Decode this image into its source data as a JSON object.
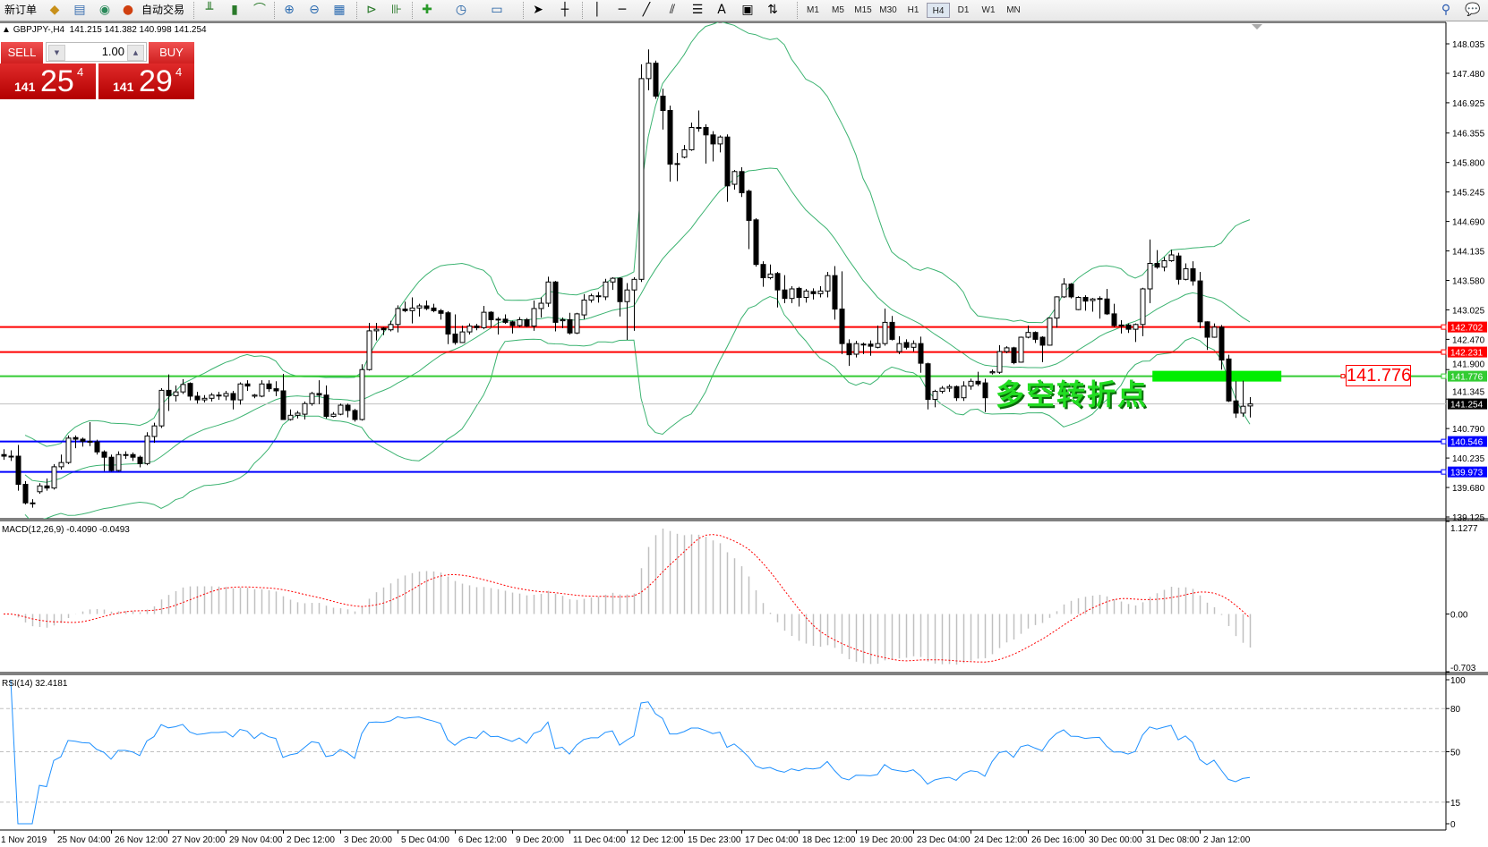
{
  "toolbar": {
    "new_order": "新订单",
    "auto_trading": "自动交易",
    "timeframes": [
      "M1",
      "M5",
      "M15",
      "M30",
      "H1",
      "H4",
      "D1",
      "W1",
      "MN"
    ],
    "active_timeframe": "H4"
  },
  "chart_header": {
    "symbol_line": "GBPJPY-,H4  141.215 141.382 140.998 141.254"
  },
  "trade_panel": {
    "sell_label": "SELL",
    "buy_label": "BUY",
    "lot": "1.00",
    "bid": {
      "small": "141",
      "big": "25",
      "sup": "4"
    },
    "ask": {
      "small": "141",
      "big": "29",
      "sup": "4"
    }
  },
  "annotation": {
    "text": "多空转折点",
    "price_label": "141.776",
    "color": "#22dd22"
  },
  "chart_data": {
    "type": "candlestick",
    "symbol": "GBPJPY-",
    "timeframe": "H4",
    "ohlc": [
      [
        140.3,
        140.4,
        140.2,
        140.27
      ],
      [
        140.27,
        140.38,
        140.18,
        140.27
      ],
      [
        140.27,
        140.48,
        139.62,
        139.74
      ],
      [
        139.74,
        139.8,
        139.36,
        139.39
      ],
      [
        139.39,
        139.46,
        139.3,
        139.39
      ],
      [
        139.6,
        139.76,
        139.56,
        139.71
      ],
      [
        139.71,
        139.85,
        139.62,
        139.67
      ],
      [
        139.67,
        140.12,
        139.64,
        140.07
      ],
      [
        140.07,
        140.3,
        140.02,
        140.15
      ],
      [
        140.15,
        140.66,
        140.12,
        140.61
      ],
      [
        140.62,
        140.66,
        140.42,
        140.59
      ],
      [
        140.59,
        140.62,
        140.45,
        140.55
      ],
      [
        140.55,
        140.91,
        140.46,
        140.54
      ],
      [
        140.54,
        140.58,
        140.3,
        140.35
      ],
      [
        140.35,
        140.38,
        139.99,
        140.25
      ],
      [
        140.25,
        140.3,
        139.98,
        140.0
      ],
      [
        140.0,
        140.36,
        139.98,
        140.3
      ],
      [
        140.3,
        140.36,
        140.22,
        140.3
      ],
      [
        140.3,
        140.34,
        140.18,
        140.25
      ],
      [
        140.25,
        140.28,
        140.06,
        140.13
      ],
      [
        140.13,
        140.72,
        140.1,
        140.65
      ],
      [
        140.64,
        140.9,
        140.52,
        140.84
      ],
      [
        140.84,
        141.55,
        140.8,
        141.51
      ],
      [
        141.51,
        141.81,
        141.12,
        141.41
      ],
      [
        141.41,
        141.6,
        141.3,
        141.48
      ],
      [
        141.48,
        141.72,
        141.44,
        141.62
      ],
      [
        141.64,
        141.66,
        141.32,
        141.4
      ],
      [
        141.4,
        141.48,
        141.26,
        141.33
      ],
      [
        141.33,
        141.42,
        141.28,
        141.36
      ],
      [
        141.36,
        141.46,
        141.3,
        141.42
      ],
      [
        141.42,
        141.48,
        141.33,
        141.42
      ],
      [
        141.4,
        141.5,
        141.32,
        141.45
      ],
      [
        141.45,
        141.5,
        141.15,
        141.33
      ],
      [
        141.33,
        141.66,
        141.24,
        141.63
      ],
      [
        141.63,
        141.7,
        141.5,
        141.59
      ],
      [
        141.4,
        141.44,
        141.36,
        141.42
      ],
      [
        141.4,
        141.7,
        141.38,
        141.63
      ],
      [
        141.63,
        141.7,
        141.48,
        141.54
      ],
      [
        141.54,
        141.68,
        141.4,
        141.5
      ],
      [
        141.5,
        141.82,
        140.96,
        140.96
      ],
      [
        140.96,
        141.15,
        140.94,
        141.04
      ],
      [
        141.04,
        141.12,
        140.98,
        141.08
      ],
      [
        141.06,
        141.3,
        140.96,
        141.26
      ],
      [
        141.26,
        141.48,
        141.22,
        141.45
      ],
      [
        141.45,
        141.7,
        141.25,
        141.42
      ],
      [
        141.42,
        141.6,
        140.98,
        141.02
      ],
      [
        141.02,
        141.1,
        141.0,
        141.06
      ],
      [
        141.06,
        141.26,
        141.04,
        141.23
      ],
      [
        141.23,
        141.26,
        141.0,
        141.13
      ],
      [
        141.13,
        141.16,
        140.92,
        140.96
      ],
      [
        140.96,
        142.0,
        140.94,
        141.9
      ],
      [
        141.9,
        142.78,
        141.88,
        142.63
      ],
      [
        142.63,
        142.78,
        142.45,
        142.66
      ],
      [
        142.68,
        142.7,
        142.55,
        142.65
      ],
      [
        142.65,
        142.82,
        142.62,
        142.75
      ],
      [
        142.75,
        143.11,
        142.6,
        143.05
      ],
      [
        143.04,
        143.18,
        142.98,
        143.01
      ],
      [
        143.01,
        143.26,
        142.77,
        143.06
      ],
      [
        143.06,
        143.14,
        142.9,
        143.1
      ],
      [
        143.1,
        143.2,
        143.02,
        143.05
      ],
      [
        143.06,
        143.14,
        142.98,
        143.01
      ],
      [
        143.01,
        143.04,
        142.84,
        142.96
      ],
      [
        142.97,
        143.0,
        142.38,
        142.57
      ],
      [
        142.57,
        142.94,
        142.37,
        142.41
      ],
      [
        142.41,
        142.73,
        142.4,
        142.61
      ],
      [
        142.61,
        142.77,
        142.56,
        142.72
      ],
      [
        142.72,
        142.76,
        142.64,
        142.69
      ],
      [
        142.69,
        143.1,
        142.66,
        142.98
      ],
      [
        142.98,
        143.0,
        142.7,
        142.84
      ],
      [
        142.85,
        142.89,
        142.56,
        142.85
      ],
      [
        142.85,
        142.94,
        142.76,
        142.79
      ],
      [
        142.8,
        142.82,
        142.58,
        142.73
      ],
      [
        142.73,
        142.89,
        142.7,
        142.84
      ],
      [
        142.84,
        142.87,
        142.7,
        142.72
      ],
      [
        142.72,
        143.2,
        142.63,
        143.05
      ],
      [
        143.05,
        143.26,
        142.88,
        143.15
      ],
      [
        143.15,
        143.65,
        143.08,
        143.55
      ],
      [
        143.55,
        143.57,
        142.62,
        142.79
      ],
      [
        142.82,
        142.88,
        142.68,
        142.84
      ],
      [
        142.84,
        142.97,
        142.56,
        142.59
      ],
      [
        142.59,
        142.97,
        142.57,
        142.95
      ],
      [
        142.93,
        143.32,
        142.85,
        143.21
      ],
      [
        143.21,
        143.33,
        143.16,
        143.29
      ],
      [
        143.29,
        143.36,
        143.16,
        143.29
      ],
      [
        143.27,
        143.61,
        143.21,
        143.55
      ],
      [
        143.55,
        143.64,
        143.4,
        143.62
      ],
      [
        143.62,
        143.64,
        142.9,
        143.18
      ],
      [
        143.18,
        143.53,
        142.46,
        143.4
      ],
      [
        143.4,
        143.64,
        142.63,
        143.6
      ],
      [
        143.6,
        147.65,
        143.55,
        147.38
      ],
      [
        147.38,
        147.93,
        147.16,
        147.67
      ],
      [
        147.67,
        147.72,
        147.0,
        147.05
      ],
      [
        147.05,
        147.19,
        146.42,
        146.78
      ],
      [
        146.78,
        146.87,
        145.44,
        145.77
      ],
      [
        145.78,
        145.98,
        145.45,
        145.78
      ],
      [
        145.9,
        146.13,
        145.88,
        146.04
      ],
      [
        146.04,
        146.55,
        146.02,
        146.46
      ],
      [
        146.46,
        146.78,
        146.38,
        146.46
      ],
      [
        146.46,
        146.52,
        145.78,
        146.32
      ],
      [
        146.32,
        146.39,
        145.82,
        146.15
      ],
      [
        146.15,
        146.31,
        145.99,
        146.28
      ],
      [
        146.28,
        146.33,
        145.06,
        145.36
      ],
      [
        145.39,
        145.66,
        145.29,
        145.63
      ],
      [
        145.63,
        145.71,
        145.15,
        145.23
      ],
      [
        145.26,
        145.29,
        144.17,
        144.71
      ],
      [
        144.72,
        144.75,
        143.84,
        143.88
      ],
      [
        143.88,
        143.94,
        143.46,
        143.63
      ],
      [
        143.63,
        143.88,
        143.6,
        143.7
      ],
      [
        143.71,
        143.74,
        143.07,
        143.4
      ],
      [
        143.4,
        143.68,
        143.15,
        143.24
      ],
      [
        143.24,
        143.47,
        143.15,
        143.42
      ],
      [
        143.43,
        143.46,
        143.09,
        143.26
      ],
      [
        143.26,
        143.42,
        143.16,
        143.38
      ],
      [
        143.37,
        143.43,
        143.22,
        143.33
      ],
      [
        143.33,
        143.47,
        143.26,
        143.38
      ],
      [
        143.38,
        143.74,
        143.26,
        143.67
      ],
      [
        143.67,
        143.85,
        142.84,
        143.04
      ],
      [
        143.04,
        143.75,
        142.19,
        142.39
      ],
      [
        142.39,
        142.47,
        141.97,
        142.18
      ],
      [
        142.19,
        142.44,
        142.13,
        142.39
      ],
      [
        142.38,
        142.41,
        142.19,
        142.38
      ],
      [
        142.38,
        142.45,
        142.16,
        142.34
      ],
      [
        142.32,
        142.73,
        142.3,
        142.39
      ],
      [
        142.39,
        143.05,
        142.35,
        142.79
      ],
      [
        142.79,
        142.91,
        142.45,
        142.47
      ],
      [
        142.24,
        142.53,
        142.19,
        142.39
      ],
      [
        142.41,
        142.47,
        142.28,
        142.32
      ],
      [
        142.32,
        142.45,
        142.24,
        142.39
      ],
      [
        142.39,
        142.52,
        141.84,
        142.02
      ],
      [
        142.01,
        142.03,
        141.15,
        141.34
      ],
      [
        141.34,
        141.52,
        141.19,
        141.49
      ],
      [
        141.49,
        141.59,
        141.45,
        141.55
      ],
      [
        141.55,
        141.62,
        141.48,
        141.58
      ],
      [
        141.58,
        141.6,
        141.31,
        141.37
      ],
      [
        141.37,
        141.68,
        141.31,
        141.59
      ],
      [
        141.59,
        141.73,
        141.52,
        141.68
      ],
      [
        141.68,
        141.86,
        141.59,
        141.63
      ],
      [
        141.65,
        141.73,
        141.1,
        141.37
      ],
      [
        141.84,
        141.9,
        141.81,
        141.86
      ],
      [
        141.85,
        142.36,
        141.82,
        142.24
      ],
      [
        142.24,
        142.34,
        142.21,
        142.31
      ],
      [
        142.31,
        142.33,
        142.0,
        142.03
      ],
      [
        142.04,
        142.52,
        142.03,
        142.51
      ],
      [
        142.51,
        142.73,
        142.49,
        142.6
      ],
      [
        142.6,
        142.62,
        142.4,
        142.47
      ],
      [
        142.51,
        142.53,
        142.04,
        142.36
      ],
      [
        142.36,
        142.88,
        142.35,
        142.87
      ],
      [
        142.87,
        143.28,
        142.69,
        143.27
      ],
      [
        143.27,
        143.62,
        143.25,
        143.51
      ],
      [
        143.51,
        143.53,
        143.24,
        143.27
      ],
      [
        143.03,
        143.28,
        143.02,
        143.26
      ],
      [
        143.26,
        143.3,
        143.01,
        143.19
      ],
      [
        143.2,
        143.25,
        142.99,
        143.23
      ],
      [
        143.24,
        143.28,
        142.86,
        143.24
      ],
      [
        143.23,
        143.42,
        142.93,
        142.95
      ],
      [
        142.95,
        143.14,
        142.7,
        142.73
      ],
      [
        142.74,
        142.83,
        142.58,
        142.74
      ],
      [
        142.74,
        142.77,
        142.59,
        142.66
      ],
      [
        142.66,
        142.77,
        142.42,
        142.75
      ],
      [
        142.75,
        143.44,
        142.53,
        143.42
      ],
      [
        143.42,
        144.35,
        143.15,
        143.9
      ],
      [
        143.9,
        144.15,
        143.8,
        143.83
      ],
      [
        143.83,
        144.02,
        143.75,
        143.95
      ],
      [
        143.95,
        144.16,
        143.93,
        144.06
      ],
      [
        144.04,
        144.1,
        143.5,
        143.6
      ],
      [
        143.6,
        143.9,
        143.58,
        143.8
      ],
      [
        143.8,
        143.94,
        143.48,
        143.57
      ],
      [
        143.57,
        143.74,
        142.68,
        142.8
      ],
      [
        142.8,
        142.81,
        142.27,
        142.51
      ],
      [
        142.51,
        142.77,
        142.5,
        142.7
      ],
      [
        142.7,
        142.74,
        141.9,
        142.08
      ],
      [
        142.1,
        142.18,
        141.29,
        141.31
      ],
      [
        141.31,
        141.68,
        140.99,
        141.08
      ],
      [
        141.08,
        141.69,
        141.01,
        141.21
      ],
      [
        141.215,
        141.382,
        140.998,
        141.254
      ]
    ],
    "price_axis_ticks": [
      "148.035",
      "147.480",
      "146.925",
      "146.355",
      "145.800",
      "145.245",
      "144.690",
      "144.135",
      "143.580",
      "143.025",
      "142.470",
      "141.900",
      "141.345",
      "140.790",
      "140.235",
      "139.680",
      "139.125"
    ],
    "price_range": [
      139.125,
      148.035
    ],
    "horizontal_lines": [
      {
        "price": 142.702,
        "label": "142.702",
        "color": "#ff0000"
      },
      {
        "price": 142.231,
        "label": "142.231",
        "color": "#ff0000"
      },
      {
        "price": 141.776,
        "label": "141.776",
        "color": "#33cc33"
      },
      {
        "price": 140.546,
        "label": "140.546",
        "color": "#0000ff"
      },
      {
        "price": 139.973,
        "label": "139.973",
        "color": "#0000ff"
      }
    ],
    "current_price": {
      "price": 141.254,
      "label": "141.254",
      "color": "#000000"
    },
    "band_color": "#3cb371",
    "time_labels": [
      "1 Nov 2019",
      "25 Nov 04:00",
      "26 Nov 12:00",
      "27 Nov 20:00",
      "29 Nov 04:00",
      "2 Dec 12:00",
      "3 Dec 20:00",
      "5 Dec 04:00",
      "6 Dec 12:00",
      "9 Dec 20:00",
      "11 Dec 04:00",
      "12 Dec 12:00",
      "15 Dec 23:00",
      "17 Dec 04:00",
      "18 Dec 12:00",
      "19 Dec 20:00",
      "23 Dec 04:00",
      "24 Dec 12:00",
      "26 Dec 16:00",
      "30 Dec 00:00",
      "31 Dec 08:00",
      "2 Jan 12:00"
    ],
    "macd": {
      "label": "MACD(12,26,9) -0.4090 -0.0493",
      "ticks": [
        "1.1277",
        "0.00",
        "-0.703"
      ],
      "range": [
        -0.703,
        1.1277
      ],
      "histogram_color": "#c0c0c0",
      "signal_color": "#ff0000"
    },
    "rsi": {
      "label": "RSI(14) 32.4181",
      "ticks": [
        "100",
        "80",
        "50",
        "15",
        "0"
      ],
      "levels": [
        80,
        50,
        15
      ],
      "range": [
        0,
        100
      ],
      "color": "#1e90ff"
    }
  }
}
